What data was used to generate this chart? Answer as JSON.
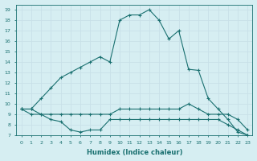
{
  "line1_x": [
    0,
    1,
    2,
    3,
    4,
    5,
    6,
    7,
    8,
    9,
    10,
    11,
    12,
    13,
    14,
    15,
    16,
    17,
    18,
    19,
    20,
    21,
    22,
    23
  ],
  "line1_y": [
    9.5,
    9.5,
    10.5,
    11.5,
    12.5,
    13.0,
    13.5,
    14.0,
    14.5,
    14.0,
    18.0,
    18.5,
    18.5,
    19.0,
    18.0,
    16.2,
    17.0,
    13.3,
    13.2,
    10.5,
    9.5,
    8.5,
    7.3,
    7.0
  ],
  "line2_x": [
    0,
    1,
    2,
    3,
    4,
    5,
    6,
    7,
    8,
    9,
    10,
    11,
    12,
    13,
    14,
    15,
    16,
    17,
    18,
    19,
    20,
    21,
    22,
    23
  ],
  "line2_y": [
    9.5,
    9.5,
    9.0,
    9.0,
    9.0,
    9.0,
    9.0,
    9.0,
    9.0,
    9.0,
    9.5,
    9.5,
    9.5,
    9.5,
    9.5,
    9.5,
    9.5,
    10.0,
    9.5,
    9.0,
    9.0,
    9.0,
    8.5,
    7.5
  ],
  "line3_x": [
    0,
    1,
    2,
    3,
    4,
    5,
    6,
    7,
    8,
    9,
    10,
    11,
    12,
    13,
    14,
    15,
    16,
    17,
    18,
    19,
    20,
    21,
    22,
    23
  ],
  "line3_y": [
    9.5,
    9.0,
    9.0,
    8.5,
    8.3,
    7.5,
    7.3,
    7.5,
    7.5,
    8.5,
    8.5,
    8.5,
    8.5,
    8.5,
    8.5,
    8.5,
    8.5,
    8.5,
    8.5,
    8.5,
    8.5,
    8.0,
    7.5,
    7.0
  ],
  "line_color": "#1a7070",
  "bg_color": "#d6eef2",
  "grid_color": "#c8e0e8",
  "xlabel": "Humidex (Indice chaleur)",
  "ylim": [
    7,
    19.5
  ],
  "xlim": [
    -0.5,
    23.5
  ],
  "yticks": [
    7,
    8,
    9,
    10,
    11,
    12,
    13,
    14,
    15,
    16,
    17,
    18,
    19
  ],
  "xticks": [
    0,
    1,
    2,
    3,
    4,
    5,
    6,
    7,
    8,
    9,
    10,
    11,
    12,
    13,
    14,
    15,
    16,
    17,
    18,
    19,
    20,
    21,
    22,
    23
  ]
}
